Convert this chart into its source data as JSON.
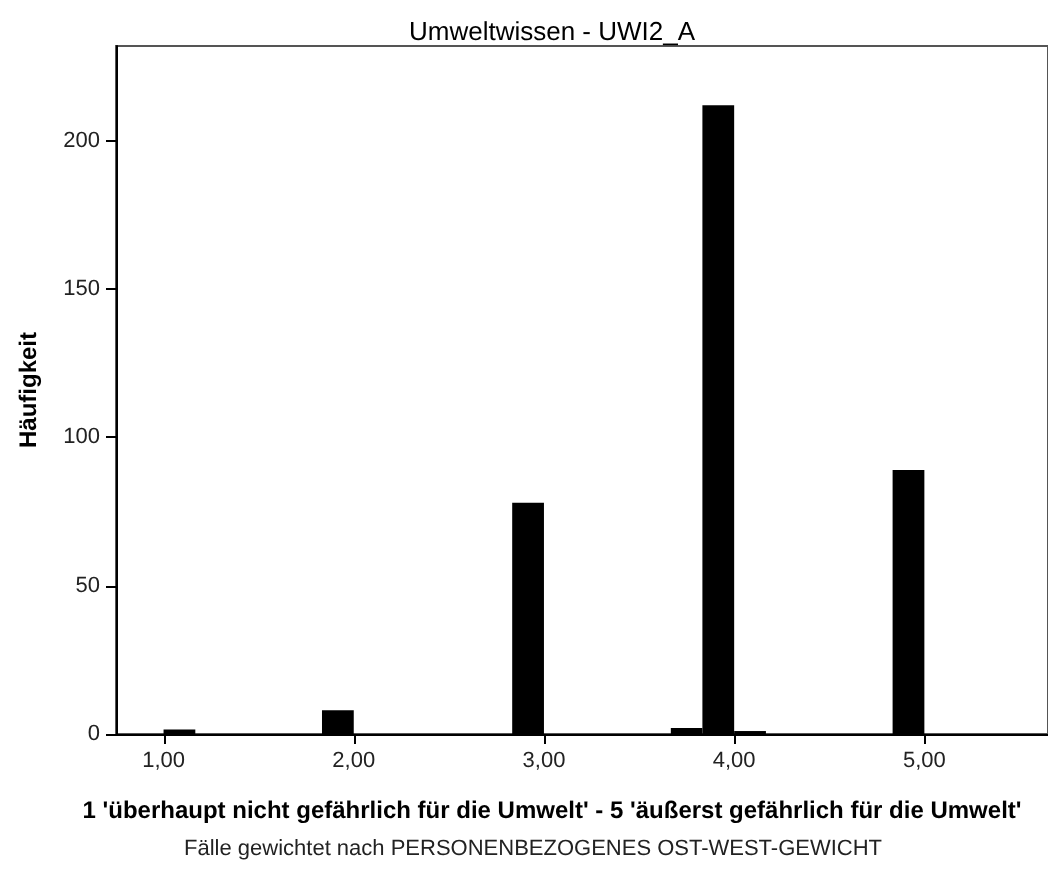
{
  "chart_data": {
    "type": "histogram",
    "title": "Umweltwissen - UWI2_A",
    "xlabel": "1 'überhaupt nicht gefährlich für die Umwelt' - 5 'äußerst gefährlich für die Umwelt'",
    "ylabel": "Häufigkeit",
    "annotations": [
      "Fälle gewichtet nach PERSONENBEZOGENES OST-WEST-GEWICHT"
    ],
    "bins": [
      1,
      1.167,
      1.333,
      1.5,
      1.667,
      1.833,
      2,
      2.167,
      2.333,
      2.5,
      2.667,
      2.833,
      3,
      3.167,
      3.333,
      3.5,
      3.667,
      3.833,
      4,
      4.167,
      4.333,
      4.5,
      4.667,
      4.833,
      5
    ],
    "values": [
      1.5,
      0,
      0,
      0,
      0,
      8,
      0,
      0,
      0,
      0,
      0,
      78,
      0,
      0,
      0,
      0,
      2,
      212,
      1,
      0,
      0,
      0,
      0,
      89
    ],
    "color": "#000000",
    "xlim": [
      0.75,
      5.65
    ],
    "ylim": [
      0,
      232
    ],
    "xticks": [
      {
        "value": 1,
        "label": "1,00"
      },
      {
        "value": 2,
        "label": "2,00"
      },
      {
        "value": 3,
        "label": "3,00"
      },
      {
        "value": 4,
        "label": "4,00"
      },
      {
        "value": 5,
        "label": "5,00"
      }
    ],
    "yticks": [
      0,
      50,
      100,
      150,
      200
    ],
    "grid": false
  }
}
